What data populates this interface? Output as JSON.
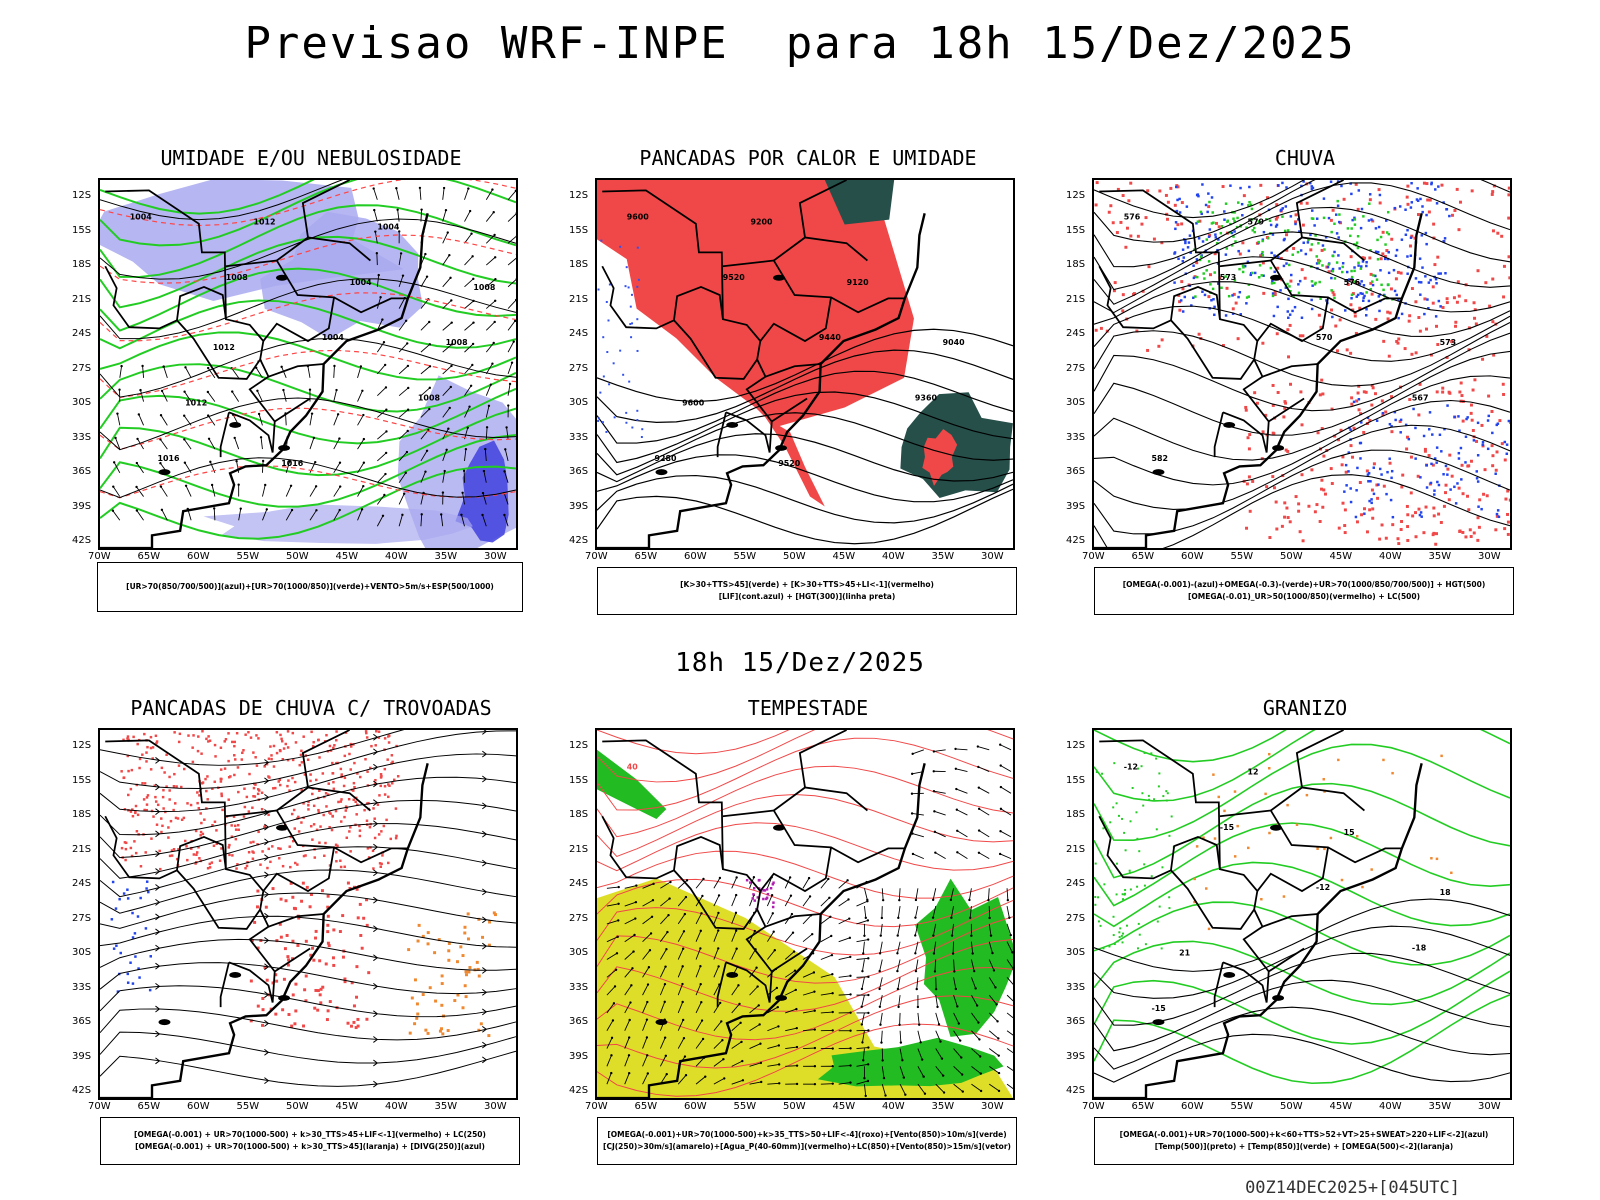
{
  "title": "Previsao WRF-INPE  para 18h 15/Dez/2025",
  "mid_title": "18h 15/Dez/2025",
  "footer": "00Z14DEC2025+[045UTC]",
  "axes": {
    "lat_labels": [
      "12S",
      "15S",
      "18S",
      "21S",
      "24S",
      "27S",
      "30S",
      "33S",
      "36S",
      "39S",
      "42S"
    ],
    "lon_labels": [
      "70W",
      "65W",
      "60W",
      "55W",
      "50W",
      "45W",
      "40W",
      "35W",
      "30W"
    ]
  },
  "panels": [
    {
      "title": "UMIDADE E/OU NEBULOSIDADE",
      "legend": [
        "[UR>70(850/700/500)](azul)+[UR>70(1000/850)](verde)+VENTO>5m/s+ESP(500/1000)"
      ],
      "contour_labels": [
        "1004",
        "1008",
        "1004",
        "1008",
        "1016",
        "1012",
        "1004",
        "1008",
        "1012",
        "1016",
        "1004",
        "1008",
        "1012"
      ],
      "colors": {
        "blue": "#a9a9f0",
        "blue_dark": "#4848e0",
        "green": "#22cc22",
        "red": "#ff4444"
      }
    },
    {
      "title": "PANCADAS POR CALOR E UMIDADE",
      "legend": [
        "[K>30+TTS>45](verde) + [K>30+TTS>45+LI<-1](vermelho)",
        "[LIF](cont.azul) + [HGT(300)](linha preta)"
      ],
      "contour_labels": [
        "9600",
        "9520",
        "9440",
        "9360",
        "9280",
        "9200",
        "9120",
        "9040",
        "9600",
        "9520"
      ],
      "colors": {
        "red": "#f04848",
        "teal": "#264f4a",
        "blue": "#3050f0"
      }
    },
    {
      "title": "CHUVA",
      "legend": [
        "[OMEGA(-0.001)-(azul)+OMEGA(-0.3)-(verde)+UR>70(1000/850/700/500)] + HGT(500)",
        "[OMEGA(-0.01)_UR>50(1000/850)(vermelho) + LC(500)"
      ],
      "contour_labels": [
        "576",
        "573",
        "570",
        "567",
        "582",
        "579",
        "576",
        "573"
      ],
      "colors": {
        "red": "#f04848",
        "blue": "#2244ee",
        "green": "#22cc22"
      }
    },
    {
      "title": "PANCADAS DE CHUVA C/ TROVOADAS",
      "legend": [
        "[OMEGA(-0.001) + UR>70(1000-500) + k>30_TTS>45+LIF<-1](vermelho) + LC(250)",
        "[OMEGA(-0.001) + UR>70(1000-500) + k>30_TTS>45](laranja) + [DIVG(250)](azul)"
      ],
      "contour_labels": [],
      "colors": {
        "red": "#f04848",
        "orange": "#f08830",
        "blue": "#2244ee"
      }
    },
    {
      "title": "TEMPESTADE",
      "legend": [
        "[OMEGA(-0.001)+UR>70(1000-500)+k>35_TTS>50+LIF<-4](roxo)+[Vento(850)>10m/s](verde)",
        "[CJ(250)>30m/s](amarelo)+[Agua_P(40-60mm)](vermelho)+LC(850)+[Vento(850)>15m/s](vetor)"
      ],
      "contour_labels": [
        "40"
      ],
      "colors": {
        "yellow": "#dede28",
        "green": "#22bb22",
        "red": "#f04848",
        "purple": "#b020b0"
      }
    },
    {
      "title": "GRANIZO",
      "legend": [
        "[OMEGA(-0.001)+UR>70(1000-500)+k<60+TTS>52+VT>25+SWEAT>220+LIF<-2](azul)",
        "[Temp(500)](preto) + [Temp(850)](verde) + [OMEGA(500)<-2](laranja)"
      ],
      "contour_labels": [
        "-12",
        "-15",
        "-12",
        "-18",
        "-15",
        "12",
        "15",
        "18",
        "21"
      ],
      "colors": {
        "green": "#22cc22",
        "orange": "#f08830",
        "black": "#000000"
      }
    }
  ]
}
